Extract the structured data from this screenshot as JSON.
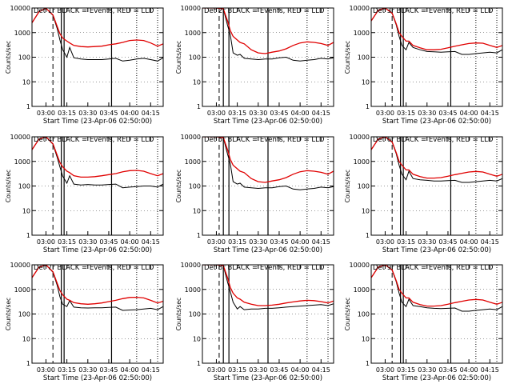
{
  "figure": {
    "ylabel": "Counts/sec",
    "xlabel": "Start Time (23-Apr-06 02:50:00)",
    "legend_text": "BLACK = Events, RED = LLD",
    "colors": {
      "events": "#000000",
      "lld": "#e00000",
      "axis": "#000000"
    }
  },
  "chart_data": [
    {
      "type": "line",
      "title": "Det 1r BLACK = Events, RED = LLD",
      "xlabel": "Start Time (23-Apr-06 02:50:00)",
      "ylabel": "Counts/sec",
      "x_ticks": [
        "03:00",
        "03:15",
        "03:30",
        "03:45",
        "04:00",
        "04:15"
      ],
      "y_ticks": [
        "1",
        "10",
        "100",
        "1000",
        "10000"
      ],
      "y_scale": "log",
      "ylim": [
        1,
        10000
      ],
      "x": [
        "02:50",
        "02:55",
        "03:00",
        "03:05",
        "03:08",
        "03:10",
        "03:12",
        "03:15",
        "03:17",
        "03:20",
        "03:25",
        "03:30",
        "03:35",
        "03:40",
        "03:45",
        "03:50",
        "03:55",
        "04:00",
        "04:05",
        "04:10",
        "04:15",
        "04:20",
        "04:24"
      ],
      "series": [
        {
          "name": "Events",
          "values": [
            2500,
            7000,
            9800,
            5000,
            1500,
            500,
            200,
            100,
            250,
            95,
            85,
            80,
            80,
            80,
            85,
            90,
            70,
            75,
            85,
            90,
            80,
            70,
            95
          ]
        },
        {
          "name": "LLD",
          "values": [
            2500,
            7000,
            9800,
            5200,
            1800,
            900,
            600,
            450,
            380,
            300,
            270,
            260,
            270,
            280,
            320,
            350,
            400,
            480,
            500,
            480,
            380,
            280,
            350
          ]
        }
      ],
      "vertical_markers": [
        "03:05 dashed",
        "03:11 solid",
        "03:13 solid",
        "03:47 solid",
        "04:05 dotted",
        "04:20 dotted"
      ]
    },
    {
      "type": "line",
      "title": "Det 2r BLACK = Events, RED = LLD",
      "xlabel": "Start Time (23-Apr-06 02:50:00)",
      "ylabel": "Counts/sec",
      "x_ticks": [
        "03:00",
        "03:15",
        "03:30",
        "03:45",
        "04:00",
        "04:15"
      ],
      "y_ticks": [
        "1",
        "10",
        "100",
        "1000",
        "10000"
      ],
      "y_scale": "log",
      "ylim": [
        1,
        10000
      ],
      "x": [
        "02:50",
        "02:55",
        "03:00",
        "03:05",
        "03:08",
        "03:10",
        "03:12",
        "03:15",
        "03:17",
        "03:20",
        "03:25",
        "03:30",
        "03:35",
        "03:40",
        "03:45",
        "03:50",
        "03:55",
        "04:00",
        "04:05",
        "04:10",
        "04:15",
        "04:20",
        "04:24"
      ],
      "series": [
        {
          "name": "Events",
          "values": [
            10000,
            10000,
            10000,
            9000,
            2000,
            800,
            150,
            120,
            130,
            90,
            85,
            80,
            85,
            85,
            95,
            100,
            75,
            70,
            75,
            80,
            90,
            85,
            95
          ]
        },
        {
          "name": "LLD",
          "values": [
            10000,
            10000,
            10000,
            9200,
            3000,
            1200,
            700,
            500,
            400,
            350,
            200,
            150,
            140,
            160,
            180,
            220,
            300,
            380,
            420,
            400,
            360,
            300,
            400
          ]
        }
      ],
      "vertical_markers": [
        "03:02 dashed",
        "03:05 solid",
        "03:09 solid",
        "03:37 solid",
        "04:05 dotted",
        "04:20 dotted"
      ]
    },
    {
      "type": "line",
      "title": "Det 3r BLACK = Events, RED = LLD",
      "xlabel": "Start Time (23-Apr-06 02:50:00)",
      "ylabel": "Counts/sec",
      "x_ticks": [
        "03:00",
        "03:15",
        "03:30",
        "03:45",
        "04:00",
        "04:15"
      ],
      "y_ticks": [
        "1",
        "10",
        "100",
        "1000",
        "10000"
      ],
      "y_scale": "log",
      "ylim": [
        1,
        10000
      ],
      "x": [
        "02:50",
        "02:55",
        "03:00",
        "03:05",
        "03:08",
        "03:10",
        "03:12",
        "03:15",
        "03:17",
        "03:20",
        "03:25",
        "03:30",
        "03:35",
        "03:40",
        "03:45",
        "03:50",
        "03:55",
        "04:00",
        "04:05",
        "04:10",
        "04:15",
        "04:20",
        "04:24"
      ],
      "series": [
        {
          "name": "Events",
          "values": [
            3000,
            8000,
            10000,
            6000,
            2000,
            700,
            300,
            200,
            400,
            250,
            200,
            170,
            165,
            160,
            165,
            170,
            130,
            130,
            140,
            150,
            160,
            150,
            200
          ]
        },
        {
          "name": "LLD",
          "values": [
            3000,
            8000,
            10000,
            6200,
            2200,
            1000,
            700,
            450,
            450,
            300,
            240,
            200,
            200,
            210,
            240,
            280,
            320,
            360,
            380,
            370,
            300,
            250,
            300
          ]
        }
      ],
      "vertical_markers": [
        "03:05 dashed",
        "03:11 solid",
        "03:13 solid",
        "03:47 solid",
        "04:05 dotted",
        "04:20 dotted"
      ]
    },
    {
      "type": "line",
      "title": "Det 4r BLACK = Events, RED = LLD",
      "xlabel": "Start Time (23-Apr-06 02:50:00)",
      "ylabel": "Counts/sec",
      "x_ticks": [
        "03:00",
        "03:15",
        "03:30",
        "03:45",
        "04:00",
        "04:15"
      ],
      "y_ticks": [
        "1",
        "10",
        "100",
        "1000",
        "10000"
      ],
      "y_scale": "log",
      "ylim": [
        1,
        10000
      ],
      "x": [
        "02:50",
        "02:55",
        "03:00",
        "03:05",
        "03:08",
        "03:10",
        "03:12",
        "03:15",
        "03:17",
        "03:20",
        "03:25",
        "03:30",
        "03:35",
        "03:40",
        "03:45",
        "03:50",
        "03:55",
        "04:00",
        "04:05",
        "04:10",
        "04:15",
        "04:20",
        "04:24"
      ],
      "series": [
        {
          "name": "Events",
          "values": [
            3000,
            8000,
            10000,
            5000,
            1500,
            600,
            250,
            130,
            260,
            120,
            110,
            115,
            110,
            110,
            115,
            120,
            85,
            90,
            95,
            100,
            100,
            90,
            120
          ]
        },
        {
          "name": "LLD",
          "values": [
            3000,
            8000,
            10000,
            5200,
            1800,
            900,
            600,
            400,
            350,
            260,
            230,
            230,
            240,
            260,
            290,
            320,
            380,
            420,
            430,
            400,
            320,
            260,
            320
          ]
        }
      ],
      "vertical_markers": [
        "03:05 dashed",
        "03:11 solid",
        "03:13 solid",
        "03:47 solid",
        "04:05 dotted",
        "04:20 dotted"
      ]
    },
    {
      "type": "line",
      "title": "Det 5r BLACK = Events, RED = LLD",
      "xlabel": "Start Time (23-Apr-06 02:50:00)",
      "ylabel": "Counts/sec",
      "x_ticks": [
        "03:00",
        "03:15",
        "03:30",
        "03:45",
        "04:00",
        "04:15"
      ],
      "y_ticks": [
        "1",
        "10",
        "100",
        "1000",
        "10000"
      ],
      "y_scale": "log",
      "ylim": [
        1,
        10000
      ],
      "x": [
        "02:50",
        "02:55",
        "03:00",
        "03:05",
        "03:08",
        "03:10",
        "03:12",
        "03:15",
        "03:17",
        "03:20",
        "03:25",
        "03:30",
        "03:35",
        "03:40",
        "03:45",
        "03:50",
        "03:55",
        "04:00",
        "04:05",
        "04:10",
        "04:15",
        "04:20",
        "04:24"
      ],
      "series": [
        {
          "name": "Events",
          "values": [
            10000,
            10000,
            10000,
            9000,
            2000,
            800,
            150,
            120,
            130,
            90,
            85,
            80,
            85,
            85,
            95,
            100,
            75,
            70,
            75,
            80,
            90,
            85,
            95
          ]
        },
        {
          "name": "LLD",
          "values": [
            10000,
            10000,
            10000,
            9200,
            3000,
            1200,
            700,
            500,
            400,
            350,
            200,
            150,
            140,
            160,
            180,
            220,
            300,
            380,
            420,
            400,
            360,
            300,
            400
          ]
        }
      ],
      "vertical_markers": [
        "03:02 dashed",
        "03:05 solid",
        "03:09 solid",
        "03:37 solid",
        "04:05 dotted",
        "04:20 dotted"
      ]
    },
    {
      "type": "line",
      "title": "Det 6r BLACK = Events, RED = LLD",
      "xlabel": "Start Time (23-Apr-06 02:50:00)",
      "ylabel": "Counts/sec",
      "x_ticks": [
        "03:00",
        "03:15",
        "03:30",
        "03:45",
        "04:00",
        "04:15"
      ],
      "y_ticks": [
        "1",
        "10",
        "100",
        "1000",
        "10000"
      ],
      "y_scale": "log",
      "ylim": [
        1,
        10000
      ],
      "x": [
        "02:50",
        "02:55",
        "03:00",
        "03:05",
        "03:08",
        "03:10",
        "03:12",
        "03:15",
        "03:17",
        "03:20",
        "03:25",
        "03:30",
        "03:35",
        "03:40",
        "03:45",
        "03:50",
        "03:55",
        "04:00",
        "04:05",
        "04:10",
        "04:15",
        "04:20",
        "04:24"
      ],
      "series": [
        {
          "name": "Events",
          "values": [
            3000,
            8000,
            10000,
            6000,
            2000,
            700,
            300,
            180,
            400,
            200,
            180,
            170,
            160,
            160,
            165,
            170,
            140,
            140,
            150,
            160,
            170,
            160,
            200
          ]
        },
        {
          "name": "LLD",
          "values": [
            3000,
            8000,
            10000,
            6200,
            2200,
            1000,
            700,
            450,
            450,
            300,
            240,
            210,
            210,
            220,
            250,
            290,
            330,
            370,
            390,
            370,
            300,
            250,
            300
          ]
        }
      ],
      "vertical_markers": [
        "03:05 dashed",
        "03:11 solid",
        "03:13 solid",
        "03:47 solid",
        "04:05 dotted",
        "04:20 dotted"
      ]
    },
    {
      "type": "line",
      "title": "Det 7r BLACK = Events, RED = LLD",
      "xlabel": "Start Time (23-Apr-06 02:50:00)",
      "ylabel": "Counts/sec",
      "x_ticks": [
        "03:00",
        "03:15",
        "03:30",
        "03:45",
        "04:00",
        "04:15"
      ],
      "y_ticks": [
        "1",
        "10",
        "100",
        "1000",
        "10000"
      ],
      "y_scale": "log",
      "ylim": [
        1,
        10000
      ],
      "x": [
        "02:50",
        "02:55",
        "03:00",
        "03:05",
        "03:08",
        "03:10",
        "03:12",
        "03:15",
        "03:17",
        "03:20",
        "03:25",
        "03:30",
        "03:35",
        "03:40",
        "03:45",
        "03:50",
        "03:55",
        "04:00",
        "04:05",
        "04:10",
        "04:15",
        "04:20",
        "04:24"
      ],
      "series": [
        {
          "name": "Events",
          "values": [
            3000,
            8000,
            10000,
            5000,
            1500,
            500,
            250,
            200,
            350,
            190,
            180,
            175,
            180,
            180,
            185,
            190,
            140,
            145,
            150,
            160,
            170,
            150,
            200
          ]
        },
        {
          "name": "LLD",
          "values": [
            3000,
            8000,
            10000,
            5200,
            1800,
            900,
            600,
            400,
            360,
            290,
            260,
            250,
            260,
            280,
            320,
            360,
            420,
            470,
            480,
            450,
            360,
            280,
            330
          ]
        }
      ],
      "vertical_markers": [
        "03:05 dashed",
        "03:11 solid",
        "03:13 solid",
        "03:47 solid",
        "04:05 dotted",
        "04:20 dotted"
      ]
    },
    {
      "type": "line",
      "title": "Det 8r BLACK = Events, RED = LLD",
      "xlabel": "Start Time (23-Apr-06 02:50:00)",
      "ylabel": "Counts/sec",
      "x_ticks": [
        "03:00",
        "03:15",
        "03:30",
        "03:45",
        "04:00",
        "04:15"
      ],
      "y_ticks": [
        "1",
        "10",
        "100",
        "1000",
        "10000"
      ],
      "y_scale": "log",
      "ylim": [
        1,
        10000
      ],
      "x": [
        "02:50",
        "02:55",
        "03:00",
        "03:05",
        "03:08",
        "03:10",
        "03:12",
        "03:15",
        "03:17",
        "03:20",
        "03:25",
        "03:30",
        "03:35",
        "03:40",
        "03:45",
        "03:50",
        "03:55",
        "04:00",
        "04:05",
        "04:10",
        "04:15",
        "04:20",
        "04:24"
      ],
      "series": [
        {
          "name": "Events",
          "values": [
            10000,
            10000,
            10000,
            9000,
            2000,
            800,
            300,
            160,
            200,
            150,
            160,
            160,
            170,
            170,
            180,
            190,
            200,
            210,
            220,
            230,
            240,
            220,
            260
          ]
        },
        {
          "name": "LLD",
          "values": [
            10000,
            10000,
            10000,
            9200,
            3000,
            1200,
            700,
            450,
            400,
            300,
            250,
            220,
            220,
            230,
            250,
            280,
            310,
            340,
            360,
            350,
            320,
            280,
            340
          ]
        }
      ],
      "vertical_markers": [
        "03:02 dashed",
        "03:05 solid",
        "03:09 solid",
        "03:37 solid",
        "04:05 dotted",
        "04:20 dotted"
      ]
    },
    {
      "type": "line",
      "title": "Det 9r BLACK = Events, RED = LLD",
      "xlabel": "Start Time (23-Apr-06 02:50:00)",
      "ylabel": "Counts/sec",
      "x_ticks": [
        "03:00",
        "03:15",
        "03:30",
        "03:45",
        "04:00",
        "04:15"
      ],
      "y_ticks": [
        "1",
        "10",
        "100",
        "1000",
        "10000"
      ],
      "y_scale": "log",
      "ylim": [
        1,
        10000
      ],
      "x": [
        "02:50",
        "02:55",
        "03:00",
        "03:05",
        "03:08",
        "03:10",
        "03:12",
        "03:15",
        "03:17",
        "03:20",
        "03:25",
        "03:30",
        "03:35",
        "03:40",
        "03:45",
        "03:50",
        "03:55",
        "04:00",
        "04:05",
        "04:10",
        "04:15",
        "04:20",
        "04:24"
      ],
      "series": [
        {
          "name": "Events",
          "values": [
            3000,
            8000,
            10000,
            6000,
            2000,
            700,
            300,
            200,
            400,
            220,
            200,
            180,
            170,
            165,
            170,
            175,
            130,
            130,
            140,
            150,
            160,
            150,
            200
          ]
        },
        {
          "name": "LLD",
          "values": [
            3000,
            8000,
            10000,
            6200,
            2200,
            1000,
            700,
            450,
            450,
            300,
            240,
            210,
            210,
            220,
            250,
            290,
            330,
            370,
            390,
            370,
            300,
            250,
            300
          ]
        }
      ],
      "vertical_markers": [
        "03:05 dashed",
        "03:11 solid",
        "03:13 solid",
        "03:47 solid",
        "04:05 dotted",
        "04:20 dotted"
      ]
    }
  ]
}
